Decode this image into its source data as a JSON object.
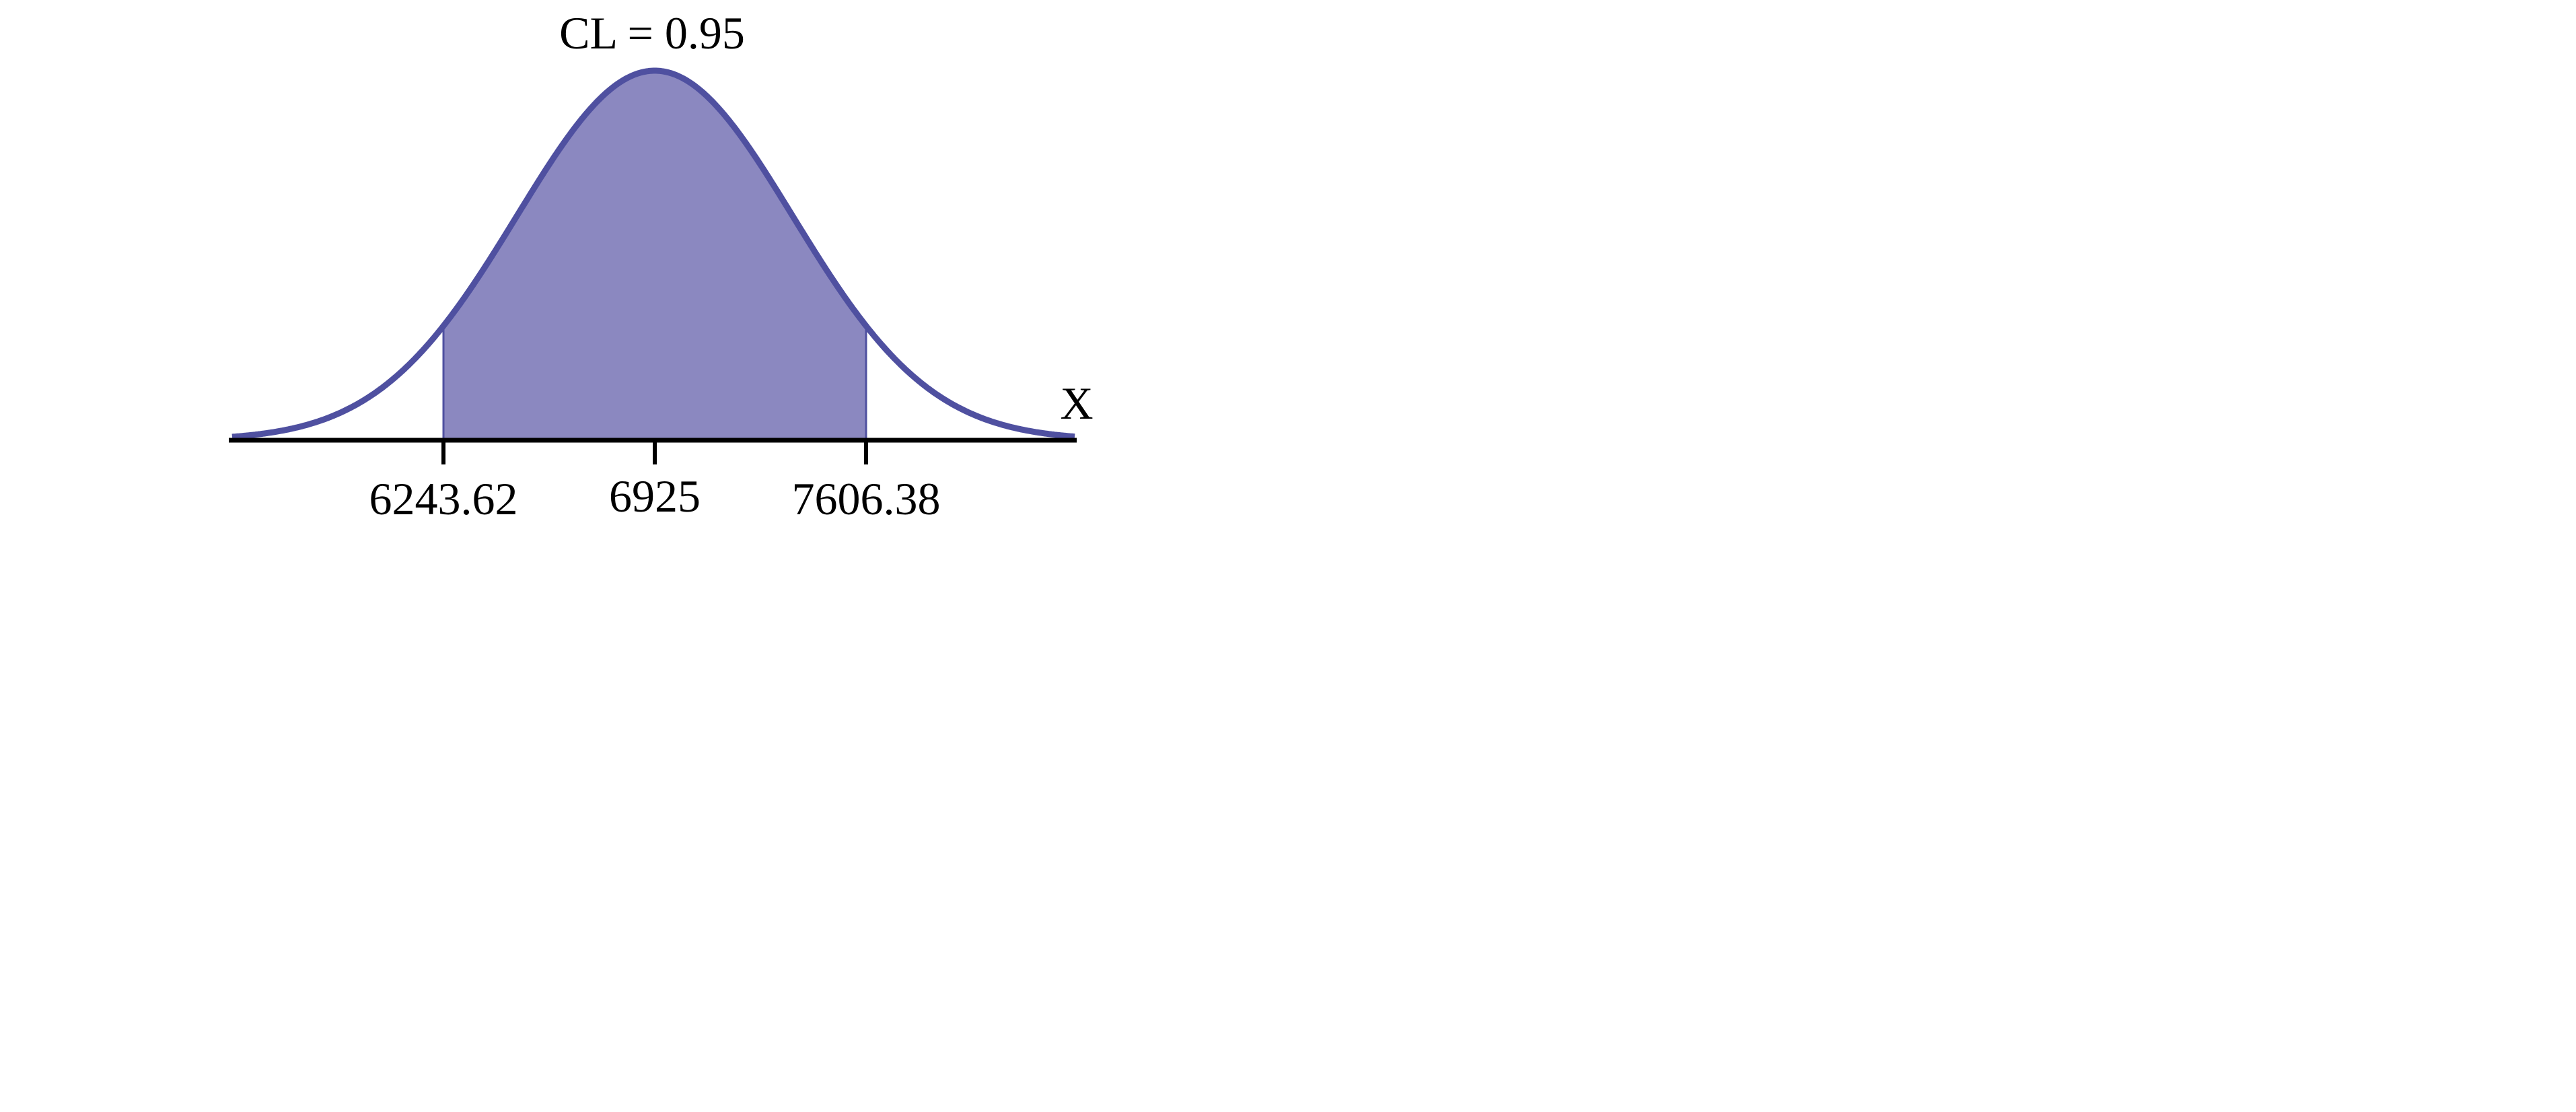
{
  "chart_data": {
    "type": "area",
    "title": "CL = 0.95",
    "xlabel": "X",
    "ylabel": "",
    "distribution": "normal",
    "mean": 6925,
    "confidence_level": 0.95,
    "interval": [
      6243.62,
      7606.38
    ],
    "tick_values": [
      6243.62,
      6925,
      7606.38
    ],
    "tick_labels": [
      "6243.62",
      "6925",
      "7606.38"
    ],
    "grid": false,
    "colors": {
      "curve": "#4f50a0",
      "fill": "#8b88c0",
      "axis": "#000000"
    }
  }
}
